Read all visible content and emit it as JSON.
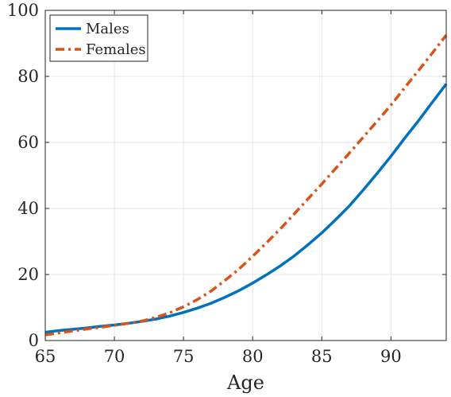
{
  "chart_data": {
    "type": "line",
    "xlabel": "Age",
    "ylabel": "",
    "xlim": [
      65,
      94
    ],
    "ylim": [
      0,
      100
    ],
    "xticks": [
      65,
      70,
      75,
      80,
      85,
      90
    ],
    "yticks": [
      0,
      20,
      40,
      60,
      80,
      100
    ],
    "grid": true,
    "legend_position": "top-left",
    "series": [
      {
        "name": "Males",
        "color": "#0072BD",
        "style": "solid",
        "x": [
          65,
          66,
          67,
          68,
          69,
          70,
          71,
          72,
          73,
          74,
          75,
          76,
          77,
          78,
          79,
          80,
          81,
          82,
          83,
          84,
          85,
          86,
          87,
          88,
          89,
          90,
          91,
          92,
          93,
          94
        ],
        "values": [
          2.5,
          3.0,
          3.4,
          3.8,
          4.3,
          4.7,
          5.2,
          5.8,
          6.5,
          7.4,
          8.5,
          9.8,
          11.3,
          13.1,
          15.1,
          17.4,
          19.9,
          22.6,
          25.6,
          29.0,
          32.6,
          36.6,
          40.8,
          45.6,
          50.6,
          55.8,
          61.3,
          66.6,
          72.2,
          77.7
        ]
      },
      {
        "name": "Females",
        "color": "#D95319",
        "style": "dashdot",
        "x": [
          65,
          66,
          67,
          68,
          69,
          70,
          71,
          72,
          73,
          74,
          75,
          76,
          77,
          78,
          79,
          80,
          81,
          82,
          83,
          84,
          85,
          86,
          87,
          88,
          89,
          90,
          91,
          92,
          93,
          94
        ],
        "values": [
          1.7,
          2.3,
          2.9,
          3.5,
          4.0,
          4.6,
          5.2,
          5.9,
          7.0,
          8.4,
          10.2,
          12.4,
          15.0,
          18.2,
          21.6,
          25.5,
          29.6,
          33.8,
          38.3,
          42.9,
          47.4,
          52.1,
          56.8,
          61.6,
          66.4,
          71.3,
          76.6,
          81.8,
          87.1,
          92.5
        ]
      }
    ]
  }
}
